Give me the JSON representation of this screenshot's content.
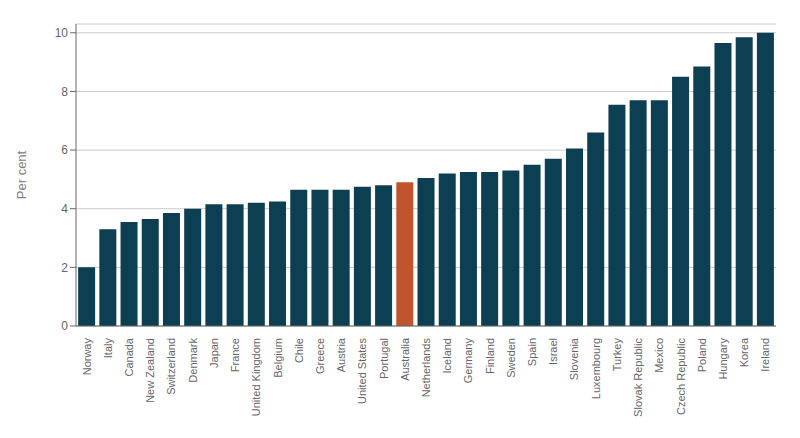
{
  "chart_data": {
    "type": "bar",
    "ylabel": "Per cent",
    "categories": [
      "Norway",
      "Italy",
      "Canada",
      "New Zealand",
      "Switzerland",
      "Denmark",
      "Japan",
      "France",
      "United Kingdom",
      "Belgium",
      "Chile",
      "Greece",
      "Austria",
      "United States",
      "Portugal",
      "Australia",
      "Netherlands",
      "Iceland",
      "Germany",
      "Finland",
      "Sweden",
      "Spain",
      "Israel",
      "Slovenia",
      "Luxembourg",
      "Turkey",
      "Slovak Republic",
      "Mexico",
      "Czech Republic",
      "Poland",
      "Hungary",
      "Korea",
      "Ireland"
    ],
    "values": [
      2.0,
      3.3,
      3.55,
      3.65,
      3.85,
      4.0,
      4.15,
      4.15,
      4.2,
      4.25,
      4.65,
      4.65,
      4.65,
      4.75,
      4.8,
      4.9,
      5.05,
      5.2,
      5.25,
      5.25,
      5.3,
      5.5,
      5.7,
      6.05,
      6.6,
      7.55,
      7.7,
      7.7,
      8.5,
      8.85,
      9.65,
      9.85,
      10.0
    ],
    "colors": [
      "#0d3f52",
      "#0d3f52",
      "#0d3f52",
      "#0d3f52",
      "#0d3f52",
      "#0d3f52",
      "#0d3f52",
      "#0d3f52",
      "#0d3f52",
      "#0d3f52",
      "#0d3f52",
      "#0d3f52",
      "#0d3f52",
      "#0d3f52",
      "#0d3f52",
      "#c0542c",
      "#0d3f52",
      "#0d3f52",
      "#0d3f52",
      "#0d3f52",
      "#0d3f52",
      "#0d3f52",
      "#0d3f52",
      "#0d3f52",
      "#0d3f52",
      "#0d3f52",
      "#0d3f52",
      "#0d3f52",
      "#0d3f52",
      "#0d3f52",
      "#0d3f52",
      "#0d3f52",
      "#0d3f52"
    ],
    "ylim": [
      0,
      10.3
    ],
    "yticks": [
      0,
      2,
      4,
      6,
      8,
      10
    ],
    "grid": true
  }
}
